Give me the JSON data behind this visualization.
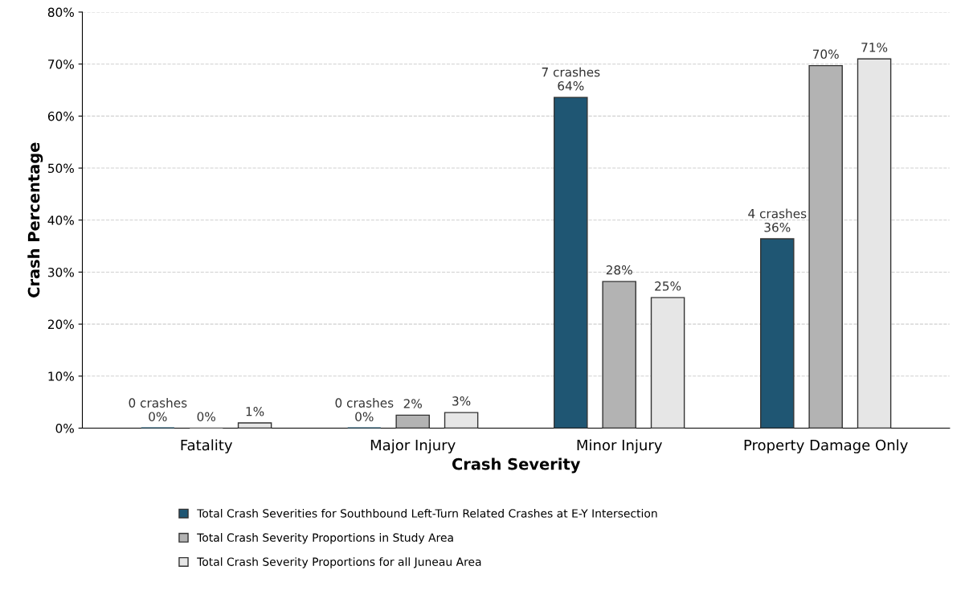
{
  "chart_data": {
    "type": "bar",
    "xlabel": "Crash Severity",
    "ylabel": "Crash Percentage",
    "categories": [
      "Fatality",
      "Major Injury",
      "Minor Injury",
      "Property Damage Only"
    ],
    "series": [
      {
        "name": "Total Crash Severities for Southbound Left-Turn Related Crashes at E-Y Intersection",
        "color": "#1f5673",
        "values": [
          0,
          0,
          63.6,
          36.4
        ],
        "value_labels": [
          "0 crashes\n0%",
          "0 crashes\n0%",
          "7 crashes\n64%",
          "4 crashes\n36%"
        ]
      },
      {
        "name": "Total Crash Severity Proportions in Study Area",
        "color": "#b3b3b3",
        "values": [
          0,
          2.5,
          28.2,
          69.7
        ],
        "value_labels": [
          "0%",
          "2%",
          "28%",
          "70%"
        ]
      },
      {
        "name": "Total Crash Severity Proportions for all Juneau Area",
        "color": "#e6e6e6",
        "values": [
          1,
          3,
          25.1,
          71
        ],
        "value_labels": [
          "1%",
          "3%",
          "25%",
          "71%"
        ]
      }
    ],
    "ylim": [
      0,
      80
    ],
    "yticks": [
      {
        "value": 0,
        "label": "0%"
      },
      {
        "value": 10,
        "label": "10%"
      },
      {
        "value": 20,
        "label": "20%"
      },
      {
        "value": 30,
        "label": "30%"
      },
      {
        "value": 40,
        "label": "40%"
      },
      {
        "value": 50,
        "label": "50%"
      },
      {
        "value": 60,
        "label": "60%"
      },
      {
        "value": 70,
        "label": "70%"
      },
      {
        "value": 80,
        "label": "80%"
      }
    ],
    "grid": "y",
    "legend": "bottom"
  }
}
